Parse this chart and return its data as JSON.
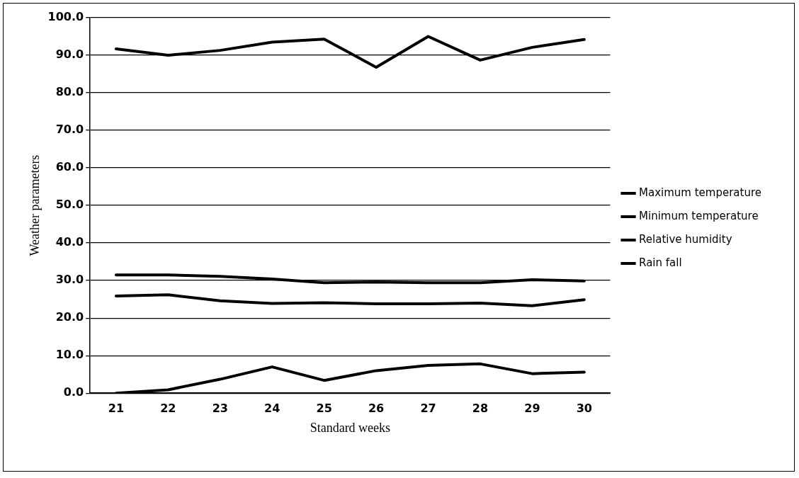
{
  "chart_data": {
    "type": "line",
    "xlabel": "Standard weeks",
    "ylabel": "Weather parameters",
    "categories": [
      "21",
      "22",
      "23",
      "24",
      "25",
      "26",
      "27",
      "28",
      "29",
      "30"
    ],
    "series": [
      {
        "name": "Maximum temperature",
        "color": "#000000",
        "values": [
          31.5,
          31.5,
          31.1,
          30.4,
          29.4,
          29.6,
          29.4,
          29.4,
          30.2,
          29.9
        ]
      },
      {
        "name": "Minimum temperature",
        "color": "#000000",
        "values": [
          25.9,
          26.2,
          24.6,
          23.9,
          24.1,
          23.8,
          23.8,
          24.0,
          23.3,
          24.9
        ]
      },
      {
        "name": "Relative humidity",
        "color": "#000000",
        "values": [
          91.7,
          90.0,
          91.3,
          93.5,
          94.3,
          86.8,
          95.0,
          88.7,
          92.1,
          94.2
        ]
      },
      {
        "name": "Rain fall",
        "color": "#000000",
        "values": [
          0.0,
          0.9,
          3.7,
          7.0,
          3.4,
          6.0,
          7.4,
          7.8,
          5.2,
          5.6
        ]
      }
    ],
    "ylim": [
      0,
      100
    ],
    "yticks": [
      {
        "value": 0,
        "label": "0.0"
      },
      {
        "value": 10,
        "label": "10.0"
      },
      {
        "value": 20,
        "label": "20.0"
      },
      {
        "value": 30,
        "label": "30.0"
      },
      {
        "value": 40,
        "label": "40.0"
      },
      {
        "value": 50,
        "label": "50.0"
      },
      {
        "value": 60,
        "label": "60.0"
      },
      {
        "value": 70,
        "label": "70.0"
      },
      {
        "value": 80,
        "label": "80.0"
      },
      {
        "value": 90,
        "label": "90.0"
      },
      {
        "value": 100,
        "label": "100.0"
      }
    ],
    "grid": "y",
    "legend": "right",
    "marker": "none",
    "line_style": "solid"
  }
}
